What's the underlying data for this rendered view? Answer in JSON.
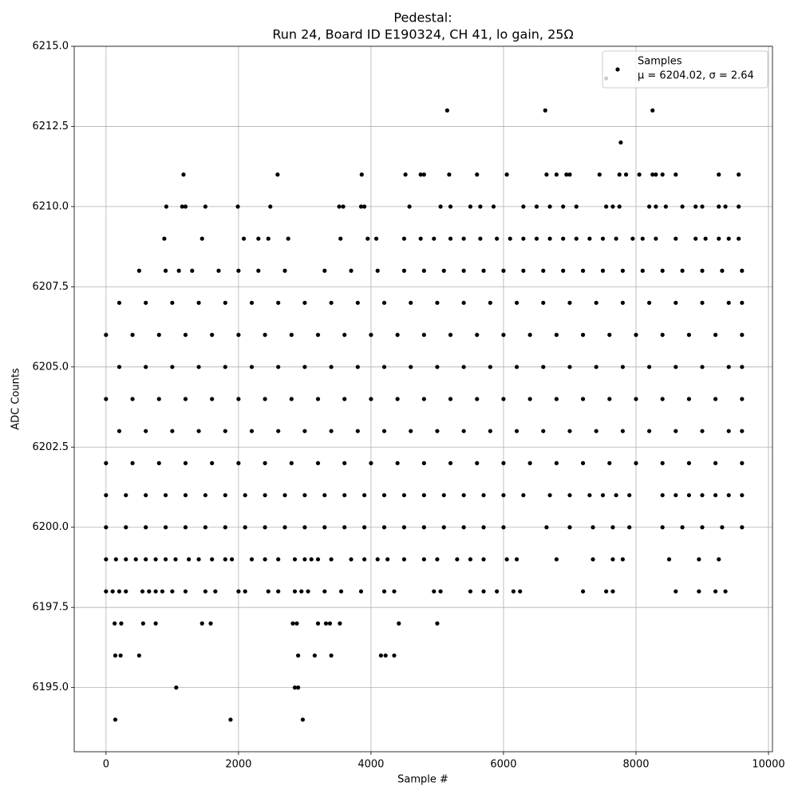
{
  "chart_data": {
    "type": "scatter",
    "title": "Pedestal:",
    "subtitle": "Run 24, Board ID E190324, CH 41, lo gain, 25Ω",
    "x_label": "Sample #",
    "y_label": "ADC Counts",
    "xlim": [
      -480,
      10060
    ],
    "ylim": [
      6193,
      6215
    ],
    "xticks": [
      0,
      2000,
      4000,
      6000,
      8000,
      10000
    ],
    "yticks": [
      {
        "value": 6195,
        "label": "6195.0"
      },
      {
        "value": 6197.5,
        "label": "6197.5"
      },
      {
        "value": 6200,
        "label": "6200.0"
      },
      {
        "value": 6202.5,
        "label": "6202.5"
      },
      {
        "value": 6205,
        "label": "6205.0"
      },
      {
        "value": 6207.5,
        "label": "6207.5"
      },
      {
        "value": 6210,
        "label": "6210.0"
      },
      {
        "value": 6212.5,
        "label": "6212.5"
      },
      {
        "value": 6215,
        "label": "6215.0"
      }
    ],
    "grid": true,
    "legend": "upper right",
    "series": [
      {
        "name": "Samples",
        "legend_stats": "μ = 6204.02, σ = 2.64",
        "color": "#000000",
        "x": [
          140,
          1880,
          2970,
          1060,
          2850,
          2900,
          140,
          220,
          500,
          2900,
          3150,
          3400,
          4150,
          4220,
          4350,
          130,
          230,
          560,
          750,
          1450,
          1580,
          2820,
          2880,
          3200,
          3320,
          3380,
          3530,
          4420,
          5000,
          0,
          100,
          200,
          300,
          550,
          650,
          750,
          850,
          1000,
          1200,
          1500,
          1650,
          2000,
          2100,
          2450,
          2600,
          2850,
          2950,
          3050,
          3300,
          3550,
          3850,
          4200,
          4350,
          4950,
          5050,
          5500,
          5700,
          5900,
          6150,
          6250,
          7200,
          7550,
          7650,
          8600,
          8950,
          9200,
          9350,
          0,
          150,
          300,
          450,
          600,
          750,
          900,
          1050,
          1250,
          1400,
          1600,
          1800,
          1900,
          2200,
          2400,
          2600,
          2850,
          3000,
          3100,
          3200,
          3400,
          3700,
          3900,
          4100,
          4250,
          4500,
          4800,
          5000,
          5300,
          5500,
          5700,
          6050,
          6200,
          6800,
          7350,
          7650,
          7800,
          8500,
          8950,
          9250,
          0,
          300,
          600,
          900,
          1200,
          1500,
          1800,
          2100,
          2400,
          2700,
          3000,
          3300,
          3600,
          3900,
          4200,
          4500,
          4800,
          5100,
          5400,
          5700,
          6000,
          6650,
          7000,
          7350,
          7650,
          7900,
          8400,
          8700,
          9000,
          9300,
          9600,
          0,
          300,
          600,
          900,
          1200,
          1500,
          1800,
          2100,
          2400,
          2700,
          3000,
          3300,
          3600,
          3900,
          4200,
          4500,
          4800,
          5100,
          5400,
          5700,
          6000,
          6300,
          6700,
          7000,
          7300,
          7500,
          7700,
          7900,
          8400,
          8600,
          8800,
          9000,
          9200,
          9400,
          9600,
          0,
          400,
          800,
          1200,
          1600,
          2000,
          2400,
          2800,
          3200,
          3600,
          4000,
          4400,
          4800,
          5200,
          5600,
          6000,
          6400,
          6800,
          7200,
          7600,
          8000,
          8400,
          8800,
          9200,
          9600,
          200,
          600,
          1000,
          1400,
          1800,
          2200,
          2600,
          3000,
          3400,
          3800,
          4200,
          4600,
          5000,
          5400,
          5800,
          6200,
          6600,
          7000,
          7400,
          7800,
          8200,
          8600,
          9000,
          9400,
          9600,
          0,
          400,
          800,
          1200,
          1600,
          2000,
          2400,
          2800,
          3200,
          3600,
          4000,
          4400,
          4800,
          5200,
          5600,
          6000,
          6400,
          6800,
          7200,
          7600,
          8000,
          8400,
          8800,
          9200,
          9600,
          200,
          600,
          1000,
          1400,
          1800,
          2200,
          2600,
          3000,
          3400,
          3800,
          4200,
          4600,
          5000,
          5400,
          5800,
          6200,
          6600,
          7000,
          7400,
          7800,
          8200,
          8600,
          9000,
          9400,
          9600,
          0,
          400,
          800,
          1200,
          1600,
          2000,
          2400,
          2800,
          3200,
          3600,
          4000,
          4400,
          4800,
          5200,
          5600,
          6000,
          6400,
          6800,
          7200,
          7600,
          8000,
          8400,
          8800,
          9200,
          9600,
          200,
          600,
          1000,
          1400,
          1800,
          2200,
          2600,
          3000,
          3400,
          3800,
          4200,
          4600,
          5000,
          5400,
          5800,
          6200,
          6600,
          7000,
          7400,
          7800,
          8200,
          8600,
          9000,
          9400,
          9600,
          500,
          900,
          1100,
          1300,
          1700,
          2000,
          2300,
          2700,
          3300,
          3700,
          4100,
          4500,
          4800,
          5100,
          5400,
          5700,
          6000,
          6300,
          6600,
          6900,
          7200,
          7500,
          7800,
          8100,
          8400,
          8700,
          9000,
          9300,
          9600,
          880,
          1450,
          2080,
          2300,
          2450,
          2750,
          3540,
          3950,
          4080,
          4500,
          4750,
          4950,
          5200,
          5400,
          5650,
          5900,
          6100,
          6300,
          6500,
          6700,
          6900,
          7100,
          7300,
          7500,
          7700,
          7950,
          8100,
          8300,
          8600,
          8900,
          9050,
          9250,
          9400,
          9550,
          910,
          1150,
          1200,
          1500,
          1990,
          2480,
          3520,
          3580,
          3850,
          3900,
          4580,
          5050,
          5200,
          5500,
          5650,
          5850,
          6300,
          6500,
          6700,
          6900,
          7100,
          7550,
          7650,
          7750,
          8200,
          8300,
          8450,
          8700,
          8900,
          9000,
          9250,
          9350,
          9550,
          1170,
          2590,
          3860,
          4520,
          4750,
          4800,
          5180,
          5600,
          6050,
          6650,
          6800,
          6950,
          7000,
          7450,
          7750,
          7850,
          8050,
          8250,
          8300,
          8400,
          8600,
          9250,
          9550,
          7770,
          5150,
          6630,
          8250,
          7550
        ],
        "values": [
          6194,
          6194,
          6194,
          6195,
          6195,
          6195,
          6196,
          6196,
          6196,
          6196,
          6196,
          6196,
          6196,
          6196,
          6196,
          6197,
          6197,
          6197,
          6197,
          6197,
          6197,
          6197,
          6197,
          6197,
          6197,
          6197,
          6197,
          6197,
          6197,
          6198,
          6198,
          6198,
          6198,
          6198,
          6198,
          6198,
          6198,
          6198,
          6198,
          6198,
          6198,
          6198,
          6198,
          6198,
          6198,
          6198,
          6198,
          6198,
          6198,
          6198,
          6198,
          6198,
          6198,
          6198,
          6198,
          6198,
          6198,
          6198,
          6198,
          6198,
          6198,
          6198,
          6198,
          6198,
          6198,
          6198,
          6198,
          6199,
          6199,
          6199,
          6199,
          6199,
          6199,
          6199,
          6199,
          6199,
          6199,
          6199,
          6199,
          6199,
          6199,
          6199,
          6199,
          6199,
          6199,
          6199,
          6199,
          6199,
          6199,
          6199,
          6199,
          6199,
          6199,
          6199,
          6199,
          6199,
          6199,
          6199,
          6199,
          6199,
          6199,
          6199,
          6199,
          6199,
          6199,
          6199,
          6199,
          6200,
          6200,
          6200,
          6200,
          6200,
          6200,
          6200,
          6200,
          6200,
          6200,
          6200,
          6200,
          6200,
          6200,
          6200,
          6200,
          6200,
          6200,
          6200,
          6200,
          6200,
          6200,
          6200,
          6200,
          6200,
          6200,
          6200,
          6200,
          6200,
          6200,
          6200,
          6201,
          6201,
          6201,
          6201,
          6201,
          6201,
          6201,
          6201,
          6201,
          6201,
          6201,
          6201,
          6201,
          6201,
          6201,
          6201,
          6201,
          6201,
          6201,
          6201,
          6201,
          6201,
          6201,
          6201,
          6201,
          6201,
          6201,
          6201,
          6201,
          6201,
          6201,
          6201,
          6201,
          6201,
          6201,
          6202,
          6202,
          6202,
          6202,
          6202,
          6202,
          6202,
          6202,
          6202,
          6202,
          6202,
          6202,
          6202,
          6202,
          6202,
          6202,
          6202,
          6202,
          6202,
          6202,
          6202,
          6202,
          6202,
          6202,
          6202,
          6203,
          6203,
          6203,
          6203,
          6203,
          6203,
          6203,
          6203,
          6203,
          6203,
          6203,
          6203,
          6203,
          6203,
          6203,
          6203,
          6203,
          6203,
          6203,
          6203,
          6203,
          6203,
          6203,
          6203,
          6203,
          6204,
          6204,
          6204,
          6204,
          6204,
          6204,
          6204,
          6204,
          6204,
          6204,
          6204,
          6204,
          6204,
          6204,
          6204,
          6204,
          6204,
          6204,
          6204,
          6204,
          6204,
          6204,
          6204,
          6204,
          6204,
          6205,
          6205,
          6205,
          6205,
          6205,
          6205,
          6205,
          6205,
          6205,
          6205,
          6205,
          6205,
          6205,
          6205,
          6205,
          6205,
          6205,
          6205,
          6205,
          6205,
          6205,
          6205,
          6205,
          6205,
          6205,
          6206,
          6206,
          6206,
          6206,
          6206,
          6206,
          6206,
          6206,
          6206,
          6206,
          6206,
          6206,
          6206,
          6206,
          6206,
          6206,
          6206,
          6206,
          6206,
          6206,
          6206,
          6206,
          6206,
          6206,
          6206,
          6207,
          6207,
          6207,
          6207,
          6207,
          6207,
          6207,
          6207,
          6207,
          6207,
          6207,
          6207,
          6207,
          6207,
          6207,
          6207,
          6207,
          6207,
          6207,
          6207,
          6207,
          6207,
          6207,
          6207,
          6207,
          6208,
          6208,
          6208,
          6208,
          6208,
          6208,
          6208,
          6208,
          6208,
          6208,
          6208,
          6208,
          6208,
          6208,
          6208,
          6208,
          6208,
          6208,
          6208,
          6208,
          6208,
          6208,
          6208,
          6208,
          6208,
          6208,
          6208,
          6208,
          6208,
          6209,
          6209,
          6209,
          6209,
          6209,
          6209,
          6209,
          6209,
          6209,
          6209,
          6209,
          6209,
          6209,
          6209,
          6209,
          6209,
          6209,
          6209,
          6209,
          6209,
          6209,
          6209,
          6209,
          6209,
          6209,
          6209,
          6209,
          6209,
          6209,
          6209,
          6209,
          6209,
          6209,
          6209,
          6210,
          6210,
          6210,
          6210,
          6210,
          6210,
          6210,
          6210,
          6210,
          6210,
          6210,
          6210,
          6210,
          6210,
          6210,
          6210,
          6210,
          6210,
          6210,
          6210,
          6210,
          6210,
          6210,
          6210,
          6210,
          6210,
          6210,
          6210,
          6210,
          6210,
          6210,
          6210,
          6210,
          6211,
          6211,
          6211,
          6211,
          6211,
          6211,
          6211,
          6211,
          6211,
          6211,
          6211,
          6211,
          6211,
          6211,
          6211,
          6211,
          6211,
          6211,
          6211,
          6211,
          6211,
          6211,
          6211,
          6212,
          6213,
          6213,
          6213,
          6214
        ]
      }
    ]
  }
}
